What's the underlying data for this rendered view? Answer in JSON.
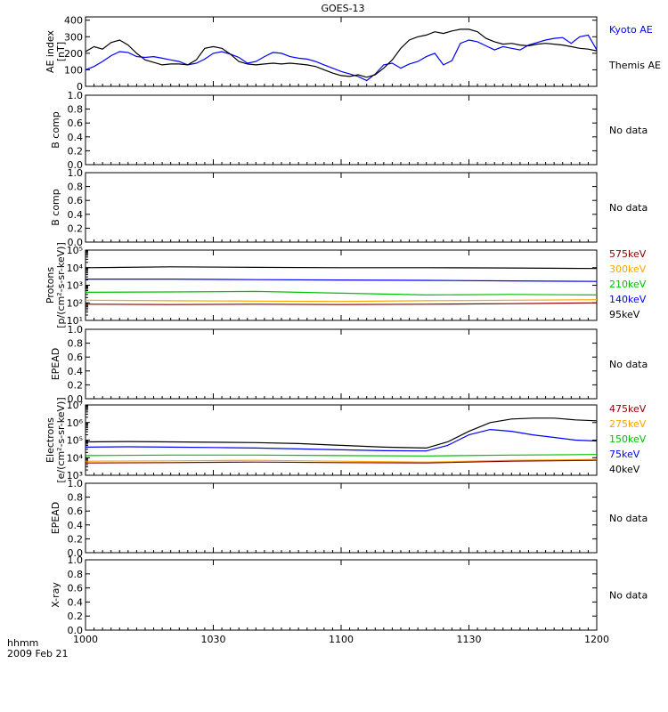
{
  "chart_data": {
    "type": "line",
    "title": "GOES-13",
    "time_unit_label": "hhmm",
    "date_label": "2009 Feb 21",
    "x_range": [
      0,
      120
    ],
    "x_ticks": [
      {
        "t": 0,
        "label": "1000"
      },
      {
        "t": 30,
        "label": "1030"
      },
      {
        "t": 60,
        "label": "1100"
      },
      {
        "t": 90,
        "label": "1130"
      },
      {
        "t": 120,
        "label": "1200"
      }
    ],
    "panels": [
      {
        "id": "ae",
        "ylabel": [
          "AE index",
          "[nT]"
        ],
        "scale": "linear",
        "ylim": [
          0,
          420
        ],
        "ticks": [
          {
            "v": 0,
            "label": "0"
          },
          {
            "v": 100,
            "label": "100"
          },
          {
            "v": 200,
            "label": "200"
          },
          {
            "v": 300,
            "label": "300"
          },
          {
            "v": 400,
            "label": "400"
          }
        ],
        "legend": [
          {
            "name": "Kyoto AE",
            "color": "#0000ff"
          },
          {
            "name": "Themis AE",
            "color": "#000000"
          }
        ],
        "series": [
          {
            "name": "Kyoto AE",
            "color": "#0000ff",
            "x": [
              0,
              2,
              4,
              6,
              8,
              10,
              12,
              14,
              16,
              18,
              20,
              22,
              24,
              26,
              28,
              30,
              32,
              34,
              36,
              38,
              40,
              42,
              44,
              46,
              48,
              50,
              52,
              54,
              56,
              58,
              60,
              62,
              64,
              66,
              68,
              70,
              72,
              74,
              76,
              78,
              80,
              82,
              84,
              86,
              88,
              90,
              92,
              94,
              96,
              98,
              100,
              102,
              104,
              106,
              108,
              110,
              112,
              114,
              116,
              118,
              120
            ],
            "y": [
              100,
              120,
              150,
              185,
              210,
              205,
              180,
              175,
              180,
              170,
              160,
              150,
              130,
              140,
              165,
              200,
              210,
              195,
              175,
              140,
              150,
              180,
              205,
              200,
              180,
              170,
              165,
              150,
              130,
              110,
              90,
              75,
              60,
              35,
              75,
              130,
              140,
              110,
              135,
              150,
              180,
              200,
              130,
              155,
              260,
              280,
              270,
              245,
              220,
              240,
              230,
              220,
              250,
              265,
              280,
              290,
              295,
              260,
              300,
              310,
              220
            ]
          },
          {
            "name": "Themis AE",
            "color": "#000000",
            "x": [
              0,
              2,
              4,
              6,
              8,
              10,
              12,
              14,
              16,
              18,
              20,
              22,
              24,
              26,
              28,
              30,
              32,
              34,
              36,
              38,
              40,
              42,
              44,
              46,
              48,
              50,
              52,
              54,
              56,
              58,
              60,
              62,
              64,
              66,
              68,
              70,
              72,
              74,
              76,
              78,
              80,
              82,
              84,
              86,
              88,
              90,
              92,
              94,
              96,
              98,
              100,
              102,
              104,
              106,
              108,
              110,
              112,
              114,
              116,
              118,
              120
            ],
            "y": [
              210,
              240,
              225,
              265,
              280,
              250,
              200,
              160,
              145,
              130,
              135,
              135,
              130,
              160,
              230,
              240,
              230,
              195,
              150,
              135,
              130,
              135,
              140,
              135,
              140,
              135,
              130,
              120,
              100,
              80,
              65,
              60,
              70,
              55,
              70,
              110,
              160,
              230,
              280,
              300,
              310,
              330,
              320,
              335,
              345,
              345,
              330,
              290,
              270,
              255,
              260,
              250,
              245,
              255,
              260,
              255,
              250,
              240,
              230,
              225,
              215
            ]
          }
        ]
      },
      {
        "id": "b1",
        "ylabel": [
          "B comp"
        ],
        "scale": "linear",
        "ylim": [
          0,
          1
        ],
        "ticks": [
          {
            "v": 0,
            "label": "0.0"
          },
          {
            "v": 0.2,
            "label": "0.2"
          },
          {
            "v": 0.4,
            "label": "0.4"
          },
          {
            "v": 0.6,
            "label": "0.6"
          },
          {
            "v": 0.8,
            "label": "0.8"
          },
          {
            "v": 1.0,
            "label": "1.0"
          }
        ],
        "legend": [
          {
            "name": "No data",
            "color": "#000000"
          }
        ],
        "series": []
      },
      {
        "id": "b2",
        "ylabel": [
          "B comp"
        ],
        "scale": "linear",
        "ylim": [
          0,
          1
        ],
        "ticks": [
          {
            "v": 0,
            "label": "0.0"
          },
          {
            "v": 0.2,
            "label": "0.2"
          },
          {
            "v": 0.4,
            "label": "0.4"
          },
          {
            "v": 0.6,
            "label": "0.6"
          },
          {
            "v": 0.8,
            "label": "0.8"
          },
          {
            "v": 1.0,
            "label": "1.0"
          }
        ],
        "legend": [
          {
            "name": "No data",
            "color": "#000000"
          }
        ],
        "series": []
      },
      {
        "id": "protons",
        "ylabel": [
          "Protons",
          "[p/(cm²-s-sr-keV)]"
        ],
        "scale": "log",
        "ylim": [
          1,
          5
        ],
        "ticks": [
          {
            "v": 1,
            "label": "10¹"
          },
          {
            "v": 2,
            "label": "10²"
          },
          {
            "v": 3,
            "label": "10³"
          },
          {
            "v": 4,
            "label": "10⁴"
          },
          {
            "v": 5,
            "label": "10⁵"
          }
        ],
        "legend": [
          {
            "name": "575keV",
            "color": "#8b0000"
          },
          {
            "name": "300keV",
            "color": "#ffa500"
          },
          {
            "name": "210keV",
            "color": "#00c000"
          },
          {
            "name": "140keV",
            "color": "#0000ff"
          },
          {
            "name": "95keV",
            "color": "#000000"
          }
        ],
        "series": [
          {
            "name": "95keV",
            "color": "#000000",
            "x": [
              0,
              20,
              40,
              60,
              80,
              100,
              120
            ],
            "y": [
              4.0,
              4.05,
              4.02,
              4.0,
              4.0,
              3.98,
              3.95
            ]
          },
          {
            "name": "140keV",
            "color": "#0000ff",
            "x": [
              0,
              20,
              40,
              60,
              80,
              100,
              120
            ],
            "y": [
              3.35,
              3.35,
              3.32,
              3.3,
              3.28,
              3.25,
              3.22
            ]
          },
          {
            "name": "210keV",
            "color": "#00c000",
            "x": [
              0,
              20,
              40,
              60,
              80,
              100,
              120
            ],
            "y": [
              2.6,
              2.62,
              2.65,
              2.55,
              2.45,
              2.48,
              2.45
            ]
          },
          {
            "name": "300keV",
            "color": "#ffa500",
            "x": [
              0,
              20,
              40,
              60,
              80,
              100,
              120
            ],
            "y": [
              2.15,
              2.12,
              2.1,
              2.08,
              2.12,
              2.15,
              2.18
            ]
          },
          {
            "name": "575keV",
            "color": "#8b0000",
            "x": [
              0,
              20,
              40,
              60,
              80,
              100,
              120
            ],
            "y": [
              1.92,
              1.9,
              1.92,
              1.9,
              1.92,
              1.95,
              2.0
            ]
          }
        ]
      },
      {
        "id": "epead1",
        "ylabel": [
          "EPEAD"
        ],
        "scale": "linear",
        "ylim": [
          0,
          1
        ],
        "ticks": [
          {
            "v": 0,
            "label": "0.0"
          },
          {
            "v": 0.2,
            "label": "0.2"
          },
          {
            "v": 0.4,
            "label": "0.4"
          },
          {
            "v": 0.6,
            "label": "0.6"
          },
          {
            "v": 0.8,
            "label": "0.8"
          },
          {
            "v": 1.0,
            "label": "1.0"
          }
        ],
        "legend": [
          {
            "name": "No data",
            "color": "#000000"
          }
        ],
        "series": []
      },
      {
        "id": "electrons",
        "ylabel": [
          "Electrons",
          "[e/(cm²-s-sr-keV)]"
        ],
        "scale": "log",
        "ylim": [
          3,
          7
        ],
        "ticks": [
          {
            "v": 3,
            "label": "10³"
          },
          {
            "v": 4,
            "label": "10⁴"
          },
          {
            "v": 5,
            "label": "10⁵"
          },
          {
            "v": 6,
            "label": "10⁶"
          },
          {
            "v": 7,
            "label": "10⁷"
          }
        ],
        "legend": [
          {
            "name": "475keV",
            "color": "#8b0000"
          },
          {
            "name": "275keV",
            "color": "#ffa500"
          },
          {
            "name": "150keV",
            "color": "#00c000"
          },
          {
            "name": "75keV",
            "color": "#0000ff"
          },
          {
            "name": "40keV",
            "color": "#000000"
          }
        ],
        "series": [
          {
            "name": "40keV",
            "color": "#000000",
            "x": [
              0,
              10,
              20,
              30,
              40,
              50,
              60,
              70,
              80,
              85,
              90,
              95,
              100,
              105,
              110,
              115,
              120
            ],
            "y": [
              4.9,
              4.92,
              4.9,
              4.88,
              4.86,
              4.8,
              4.7,
              4.6,
              4.55,
              4.9,
              5.5,
              6.0,
              6.2,
              6.25,
              6.25,
              6.15,
              6.1
            ]
          },
          {
            "name": "75keV",
            "color": "#0000ff",
            "x": [
              0,
              10,
              20,
              30,
              40,
              50,
              60,
              70,
              80,
              85,
              90,
              95,
              100,
              105,
              110,
              115,
              120
            ],
            "y": [
              4.6,
              4.62,
              4.6,
              4.58,
              4.55,
              4.5,
              4.45,
              4.4,
              4.38,
              4.7,
              5.3,
              5.6,
              5.5,
              5.3,
              5.15,
              5.0,
              4.95
            ]
          },
          {
            "name": "150keV",
            "color": "#00c000",
            "x": [
              0,
              20,
              40,
              60,
              80,
              100,
              120
            ],
            "y": [
              4.12,
              4.15,
              4.15,
              4.12,
              4.1,
              4.15,
              4.18
            ]
          },
          {
            "name": "275keV",
            "color": "#ffa500",
            "x": [
              0,
              20,
              40,
              60,
              80,
              100,
              120
            ],
            "y": [
              3.8,
              3.82,
              3.85,
              3.8,
              3.75,
              3.85,
              3.9
            ]
          },
          {
            "name": "475keV",
            "color": "#8b0000",
            "x": [
              0,
              20,
              40,
              60,
              80,
              100,
              120
            ],
            "y": [
              3.7,
              3.72,
              3.75,
              3.72,
              3.7,
              3.8,
              3.85
            ]
          }
        ]
      },
      {
        "id": "epead2",
        "ylabel": [
          "EPEAD"
        ],
        "scale": "linear",
        "ylim": [
          0,
          1
        ],
        "ticks": [
          {
            "v": 0,
            "label": "0.0"
          },
          {
            "v": 0.2,
            "label": "0.2"
          },
          {
            "v": 0.4,
            "label": "0.4"
          },
          {
            "v": 0.6,
            "label": "0.6"
          },
          {
            "v": 0.8,
            "label": "0.8"
          },
          {
            "v": 1.0,
            "label": "1.0"
          }
        ],
        "legend": [
          {
            "name": "No data",
            "color": "#000000"
          }
        ],
        "series": []
      },
      {
        "id": "xray",
        "ylabel": [
          "X-ray"
        ],
        "scale": "linear",
        "ylim": [
          0,
          1
        ],
        "ticks": [
          {
            "v": 0,
            "label": "0.0"
          },
          {
            "v": 0.2,
            "label": "0.2"
          },
          {
            "v": 0.4,
            "label": "0.4"
          },
          {
            "v": 0.6,
            "label": "0.6"
          },
          {
            "v": 0.8,
            "label": "0.8"
          },
          {
            "v": 1.0,
            "label": "1.0"
          }
        ],
        "legend": [
          {
            "name": "No data",
            "color": "#000000"
          }
        ],
        "series": []
      }
    ]
  }
}
